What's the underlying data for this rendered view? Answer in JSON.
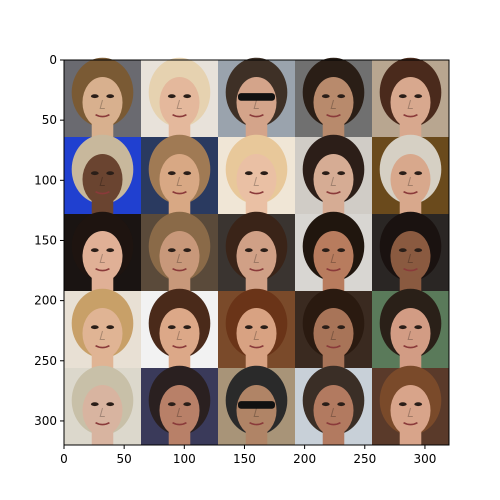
{
  "figure": {
    "axes": {
      "x_range": [
        0,
        320
      ],
      "y_range": [
        0,
        320
      ],
      "x_ticks": [
        0,
        50,
        100,
        150,
        200,
        250,
        300
      ],
      "y_ticks": [
        0,
        50,
        100,
        150,
        200,
        250,
        300
      ]
    },
    "grid": {
      "rows": 5,
      "cols": 5,
      "tile_size": 64
    },
    "tiles": [
      {
        "row": 0,
        "col": 0,
        "bg": "#6a6a70",
        "hair": "#7a5a34",
        "skin": "#d8b08e"
      },
      {
        "row": 0,
        "col": 1,
        "bg": "#e8e2da",
        "hair": "#e6d2b0",
        "skin": "#e4b89c"
      },
      {
        "row": 0,
        "col": 2,
        "bg": "#9aa3ad",
        "hair": "#3e3026",
        "skin": "#d4a48a",
        "glasses": true
      },
      {
        "row": 0,
        "col": 3,
        "bg": "#707070",
        "hair": "#2a1e16",
        "skin": "#b88a6c"
      },
      {
        "row": 0,
        "col": 4,
        "bg": "#b8a690",
        "hair": "#4a2a1c",
        "skin": "#d8a88e"
      },
      {
        "row": 1,
        "col": 0,
        "bg": "#2040d0",
        "hair": "#c8b89c",
        "skin": "#6a4430"
      },
      {
        "row": 1,
        "col": 1,
        "bg": "#2a3a60",
        "hair": "#a07a54",
        "skin": "#d8a884"
      },
      {
        "row": 1,
        "col": 2,
        "bg": "#f0e6d6",
        "hair": "#e8c89a",
        "skin": "#eac0a4"
      },
      {
        "row": 1,
        "col": 3,
        "bg": "#d0ccc6",
        "hair": "#2c1e18",
        "skin": "#d6ac94"
      },
      {
        "row": 1,
        "col": 4,
        "bg": "#6a4a1c",
        "hair": "#d6d0c4",
        "skin": "#d8a88c"
      },
      {
        "row": 2,
        "col": 0,
        "bg": "#1a1412",
        "hair": "#1e1410",
        "skin": "#e0b096"
      },
      {
        "row": 2,
        "col": 1,
        "bg": "#5a4a3a",
        "hair": "#8a6a48",
        "skin": "#c8987a"
      },
      {
        "row": 2,
        "col": 2,
        "bg": "#3a3430",
        "hair": "#3a2418",
        "skin": "#d0a086"
      },
      {
        "row": 2,
        "col": 3,
        "bg": "#d8d6d2",
        "hair": "#20160e",
        "skin": "#b87c5e"
      },
      {
        "row": 2,
        "col": 4,
        "bg": "#2a2624",
        "hair": "#1a1210",
        "skin": "#8a5a40"
      },
      {
        "row": 3,
        "col": 0,
        "bg": "#e8e0d4",
        "hair": "#c8a068",
        "skin": "#e0b494"
      },
      {
        "row": 3,
        "col": 1,
        "bg": "#f2f2f2",
        "hair": "#4a2a1a",
        "skin": "#dca888"
      },
      {
        "row": 3,
        "col": 2,
        "bg": "#7a4a2a",
        "hair": "#6a3418",
        "skin": "#d8a282"
      },
      {
        "row": 3,
        "col": 3,
        "bg": "#3a2a20",
        "hair": "#2a1a10",
        "skin": "#a87458"
      },
      {
        "row": 3,
        "col": 4,
        "bg": "#5a7a5a",
        "hair": "#2a2018",
        "skin": "#d29c84"
      },
      {
        "row": 4,
        "col": 0,
        "bg": "#dcd8cc",
        "hair": "#c8c0a8",
        "skin": "#d8b4a0"
      },
      {
        "row": 4,
        "col": 1,
        "bg": "#3a3a5a",
        "hair": "#2a2020",
        "skin": "#b88068"
      },
      {
        "row": 4,
        "col": 2,
        "bg": "#a89478",
        "hair": "#2a2a2a",
        "skin": "#b08466",
        "glasses": true
      },
      {
        "row": 4,
        "col": 3,
        "bg": "#c8d0d8",
        "hair": "#3a2e26",
        "skin": "#b27a60"
      },
      {
        "row": 4,
        "col": 4,
        "bg": "#5a3a2a",
        "hair": "#7a4a2a",
        "skin": "#d8a48a"
      }
    ]
  }
}
